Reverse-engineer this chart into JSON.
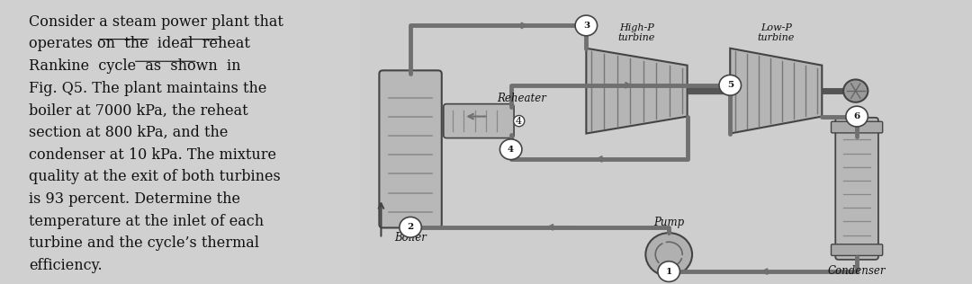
{
  "bg_color": "#d8d8d8",
  "text_color": "#1a1a1a",
  "text_block": [
    "Consider a steam power plant that",
    "operates on  the  ideal  reheat",
    "Rankine  cycle  as  shown  in",
    "Fig. Q5. The plant maintains the",
    "boiler at 7000 kPa, the reheat",
    "section at 800 kPa, and the",
    "condenser at 10 kPa. The mixture",
    "quality at the exit of both turbines",
    "is 93 percent. Determine the",
    "temperature at the inlet of each",
    "turbine and the cycle’s thermal",
    "efficiency."
  ],
  "underline_words": [
    [
      1,
      12,
      15
    ],
    [
      1,
      17,
      21
    ],
    [
      2,
      16,
      22
    ]
  ],
  "diagram_labels": {
    "high_p_turbine": "High-P\nturbine",
    "low_p_turbine": "Low-P\nturbine",
    "reheater": "Reheater",
    "boiler": "Boiler",
    "condenser": "Condenser",
    "pump": "Pump",
    "node3": "3",
    "node4": "4",
    "node5": "5",
    "node6": "6",
    "node2": "2"
  },
  "figsize": [
    10.8,
    3.16
  ],
  "dpi": 100
}
